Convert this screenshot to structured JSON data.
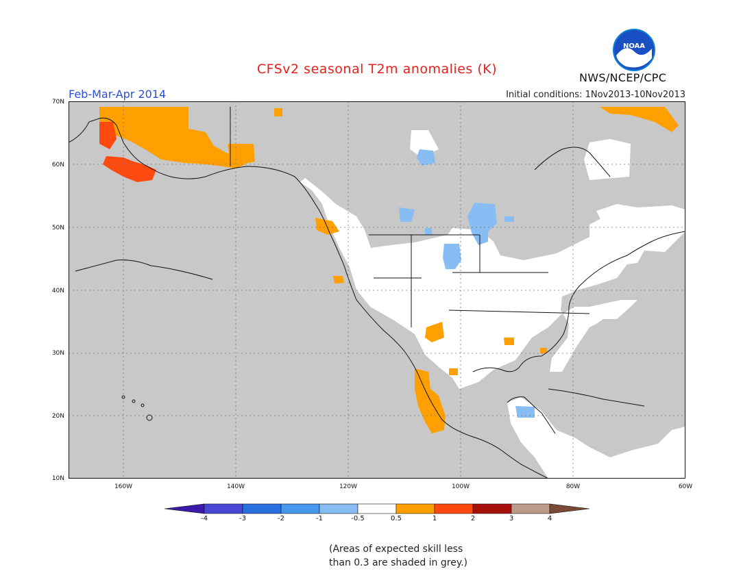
{
  "title": "CFSv2 seasonal T2m anomalies (K)",
  "season": "Feb-Mar-Apr 2014",
  "initial_conditions": "Initial conditions: 1Nov2013-10Nov2013",
  "org": "NWS/NCEP/CPC",
  "logo_text": "NOAA",
  "lat_labels": [
    "70N",
    "60N",
    "50N",
    "40N",
    "30N",
    "20N",
    "10N"
  ],
  "lon_labels": [
    "160W",
    "140W",
    "120W",
    "100W",
    "80W",
    "60W"
  ],
  "colorbar": {
    "ticks": [
      "-4",
      "-3",
      "-2",
      "-1",
      "-0.5",
      "0.5",
      "1",
      "2",
      "3",
      "4"
    ],
    "colors": [
      "#3a1aa8",
      "#4a46d4",
      "#2a6fe0",
      "#4797ec",
      "#88bdf3",
      "#ffffff",
      "#ff9f00",
      "#ff4a0f",
      "#a8100c",
      "#c09a88",
      "#7a4a36"
    ]
  },
  "footnote": {
    "line1": "(Areas of expected skill less",
    "line2": "than 0.3 are shaded in grey.)"
  },
  "style": {
    "low_skill_grey": "#c8c8c8",
    "title_color": "#e8201c",
    "season_color": "#2a4fd4"
  }
}
